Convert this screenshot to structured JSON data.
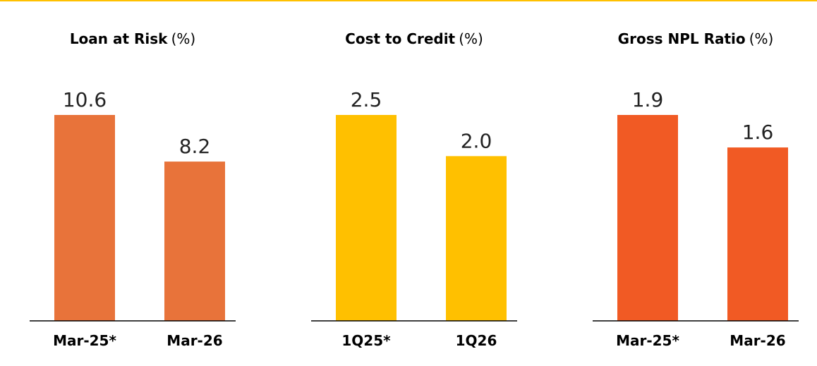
{
  "chart_data": [
    {
      "type": "bar",
      "title": "Loan at Risk",
      "unit": "(%)",
      "categories": [
        "Mar-25*",
        "Mar-26"
      ],
      "values": [
        10.6,
        8.2
      ],
      "value_labels": [
        "10.6",
        "8.2"
      ],
      "color": "#E8733A",
      "ylim": [
        0,
        10.6
      ]
    },
    {
      "type": "bar",
      "title": "Cost to Credit",
      "unit": "(%)",
      "categories": [
        "1Q25*",
        "1Q26"
      ],
      "values": [
        2.5,
        2.0
      ],
      "value_labels": [
        "2.5",
        "2.0"
      ],
      "color": "#FFC000",
      "ylim": [
        0,
        2.5
      ]
    },
    {
      "type": "bar",
      "title": "Gross NPL Ratio",
      "unit": "(%)",
      "categories": [
        "Mar-25*",
        "Mar-26"
      ],
      "values": [
        1.9,
        1.6
      ],
      "value_labels": [
        "1.9",
        "1.6"
      ],
      "color": "#F15A24",
      "ylim": [
        0,
        1.9
      ]
    }
  ]
}
